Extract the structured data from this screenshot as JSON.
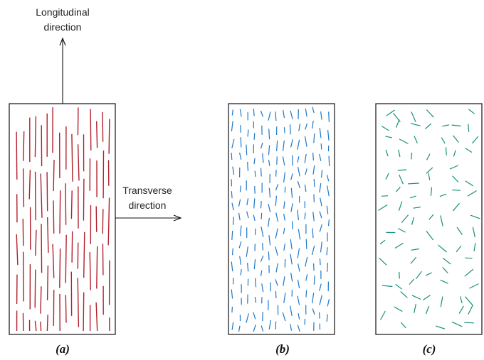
{
  "labels": {
    "longitudinal_line1": "Longitudinal",
    "longitudinal_line2": "direction",
    "transverse_line1": "Transverse",
    "transverse_line2": "direction"
  },
  "captions": {
    "a": "(a)",
    "b": "(b)",
    "c": "(c)"
  },
  "colors": {
    "continuous_fibers": "#b0202c",
    "aligned_short_fibers": "#1f78c8",
    "random_short_fibers": "#16907a",
    "frame": "#111111"
  },
  "icons": {
    "longitudinal_arrow": "arrow-up-icon",
    "transverse_arrow": "arrow-right-icon"
  }
}
